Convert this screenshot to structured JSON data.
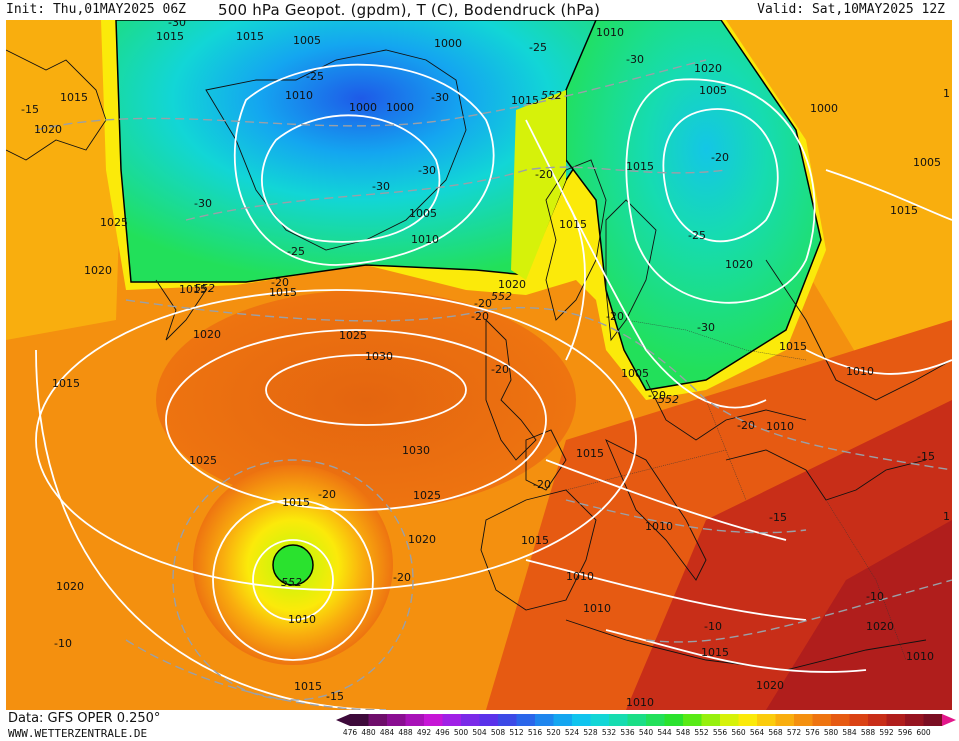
{
  "header": {
    "init": "Init: Thu,01MAY2025 06Z",
    "title": "500 hPa Geopot. (gpdm), T (C), Bodendruck (hPa)",
    "valid": "Valid: Sat,10MAY2025 12Z"
  },
  "footer": {
    "source": "Data: GFS OPER 0.250°",
    "site": "WWW.WETTERZENTRALE.DE"
  },
  "legend": {
    "values": [
      "476",
      "480",
      "484",
      "488",
      "492",
      "496",
      "500",
      "504",
      "508",
      "512",
      "516",
      "520",
      "524",
      "528",
      "532",
      "536",
      "540",
      "544",
      "548",
      "552",
      "556",
      "560",
      "564",
      "568",
      "572",
      "576",
      "580",
      "584",
      "588",
      "592",
      "596",
      "600"
    ],
    "colors": [
      "#3d0a3a",
      "#6e0e6a",
      "#8a0e92",
      "#a812b8",
      "#c616d6",
      "#a020e6",
      "#7a2ae8",
      "#5a32ea",
      "#3c4ae6",
      "#2a66ea",
      "#1e86ee",
      "#14a6f0",
      "#10c4ee",
      "#12d6d6",
      "#16dcb0",
      "#1ade86",
      "#22e05a",
      "#2ae22e",
      "#58ea16",
      "#96f00e",
      "#d6f20a",
      "#fbea0a",
      "#fbcc0c",
      "#f9ae0e",
      "#f4900f",
      "#ee7410",
      "#e65a12",
      "#da4214",
      "#c82e18",
      "#b01e1c",
      "#961420",
      "#7a0e22"
    ],
    "end_color": "#e2178a"
  },
  "map": {
    "pressure_labels": [
      "1005",
      "1000",
      "1010",
      "1000",
      "1000",
      "1005",
      "1010",
      "1015",
      "1020",
      "1025",
      "1020",
      "1015",
      "1015",
      "1020",
      "1025",
      "1030",
      "1015",
      "1025",
      "1030",
      "1025",
      "1015",
      "1020",
      "1020",
      "1010",
      "1015",
      "1010",
      "1015",
      "1020",
      "1015",
      "1010",
      "1020",
      "1005",
      "1000",
      "1005",
      "1015",
      "1020",
      "1015",
      "1010",
      "1005",
      "1015",
      "1010",
      "1015",
      "1010",
      "1015",
      "1020",
      "1015",
      "1010",
      "1015",
      "1015",
      "1010",
      "1020",
      "1010",
      "1",
      "1"
    ],
    "temp_labels": [
      "-30",
      "-25",
      "-30",
      "-30",
      "-30",
      "-30",
      "-15",
      "-30",
      "-25",
      "-20",
      "-20",
      "-20",
      "-25",
      "-20",
      "-20",
      "-30",
      "-20",
      "-20",
      "-20",
      "-20",
      "-20",
      "-15",
      "-15",
      "-10",
      "-10",
      "-15",
      "-20",
      "-25",
      "-20",
      "-10"
    ],
    "height_labels": [
      "552",
      "552",
      "552",
      "552",
      "552"
    ]
  }
}
